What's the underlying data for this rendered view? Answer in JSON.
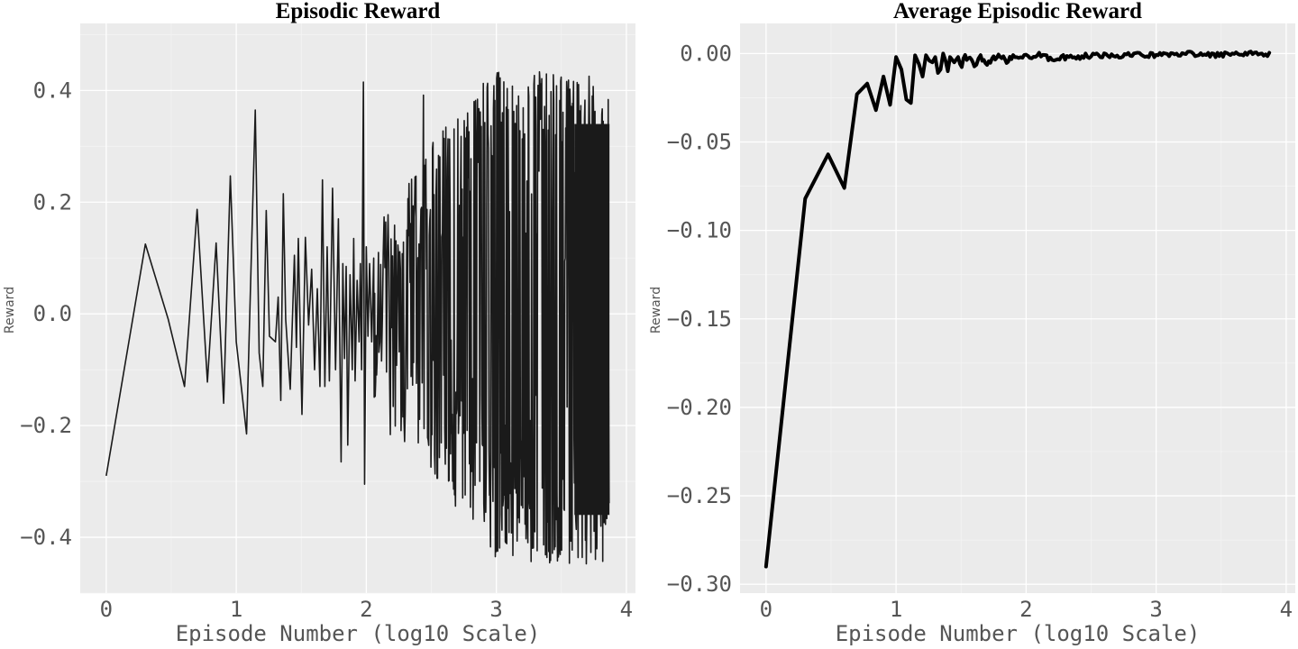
{
  "chart_data": [
    {
      "type": "line",
      "title": "Episodic Reward",
      "xlabel": "Episode Number (log10 Scale)",
      "ylabel": "Reward",
      "xlim": [
        -0.2,
        4.07
      ],
      "ylim": [
        -0.5,
        0.52
      ],
      "xticks": [
        0,
        1,
        2,
        3,
        4
      ],
      "xtick_labels": [
        "0",
        "1",
        "2",
        "3",
        "4"
      ],
      "yticks": [
        -0.4,
        -0.2,
        0.0,
        0.2,
        0.4
      ],
      "ytick_labels": [
        "−0.4",
        "−0.2",
        "0.0",
        "0.2",
        "0.4"
      ],
      "grid": true,
      "legend": "none",
      "series": [
        {
          "color": "#1a1a1a",
          "x_max": 3.87,
          "envelope": {
            "log10_episode": [
              2.0,
              2.5,
              3.0,
              3.5,
              3.87
            ],
            "reward_high": [
              0.41,
              0.45,
              0.44,
              0.43,
              0.43
            ],
            "reward_low": [
              -0.42,
              -0.43,
              -0.44,
              -0.45,
              -0.45
            ]
          },
          "points": [
            {
              "episode": 1,
              "reward": -0.29
            },
            {
              "episode": 2,
              "reward": 0.125
            },
            {
              "episode": 3,
              "reward": -0.01
            },
            {
              "episode": 4,
              "reward": -0.13
            },
            {
              "episode": 5,
              "reward": 0.187
            },
            {
              "episode": 6,
              "reward": -0.122
            },
            {
              "episode": 7,
              "reward": 0.127
            },
            {
              "episode": 8,
              "reward": -0.16
            },
            {
              "episode": 9,
              "reward": 0.247
            },
            {
              "episode": 10,
              "reward": -0.05
            },
            {
              "episode": 12,
              "reward": -0.215
            },
            {
              "episode": 14,
              "reward": 0.365
            },
            {
              "episode": 15,
              "reward": -0.07
            },
            {
              "episode": 16,
              "reward": -0.13
            },
            {
              "episode": 17,
              "reward": 0.185
            },
            {
              "episode": 18,
              "reward": -0.04
            },
            {
              "episode": 20,
              "reward": -0.05
            },
            {
              "episode": 21,
              "reward": 0.03
            },
            {
              "episode": 22,
              "reward": -0.155
            },
            {
              "episode": 23,
              "reward": 0.215
            },
            {
              "episode": 24,
              "reward": -0.01
            },
            {
              "episode": 26,
              "reward": -0.135
            },
            {
              "episode": 28,
              "reward": 0.105
            },
            {
              "episode": 29,
              "reward": -0.06
            },
            {
              "episode": 30,
              "reward": 0.135
            },
            {
              "episode": 32,
              "reward": -0.18
            },
            {
              "episode": 34,
              "reward": 0.137
            },
            {
              "episode": 36,
              "reward": -0.02
            },
            {
              "episode": 38,
              "reward": 0.08
            },
            {
              "episode": 40,
              "reward": -0.1
            },
            {
              "episode": 42,
              "reward": 0.045
            },
            {
              "episode": 44,
              "reward": -0.13
            },
            {
              "episode": 46,
              "reward": 0.24
            },
            {
              "episode": 48,
              "reward": -0.13
            },
            {
              "episode": 50,
              "reward": 0.12
            },
            {
              "episode": 52,
              "reward": -0.12
            },
            {
              "episode": 55,
              "reward": 0.225
            },
            {
              "episode": 58,
              "reward": -0.1
            },
            {
              "episode": 61,
              "reward": 0.17
            },
            {
              "episode": 64,
              "reward": -0.265
            },
            {
              "episode": 66,
              "reward": 0.09
            },
            {
              "episode": 68,
              "reward": -0.08
            },
            {
              "episode": 70,
              "reward": 0.085
            },
            {
              "episode": 72,
              "reward": -0.235
            },
            {
              "episode": 75,
              "reward": 0.07
            },
            {
              "episode": 78,
              "reward": -0.1
            },
            {
              "episode": 80,
              "reward": 0.135
            },
            {
              "episode": 82,
              "reward": -0.12
            },
            {
              "episode": 85,
              "reward": 0.06
            },
            {
              "episode": 88,
              "reward": -0.05
            },
            {
              "episode": 90,
              "reward": 0.09
            },
            {
              "episode": 92,
              "reward": -0.1
            },
            {
              "episode": 95,
              "reward": 0.415
            },
            {
              "episode": 97,
              "reward": -0.305
            },
            {
              "episode": 100,
              "reward": 0.12
            },
            {
              "episode": 103,
              "reward": -0.04
            },
            {
              "episode": 106,
              "reward": 0.09
            },
            {
              "episode": 110,
              "reward": -0.05
            },
            {
              "episode": 114,
              "reward": 0.1
            }
          ]
        }
      ]
    },
    {
      "type": "line",
      "title": "Average Episodic Reward",
      "xlabel": "Episode Number (log10 Scale)",
      "ylabel": "Reward",
      "xlim": [
        -0.2,
        4.07
      ],
      "ylim": [
        -0.305,
        0.017
      ],
      "xticks": [
        0,
        1,
        2,
        3,
        4
      ],
      "xtick_labels": [
        "0",
        "1",
        "2",
        "3",
        "4"
      ],
      "yticks": [
        0.0,
        -0.05,
        -0.1,
        -0.15,
        -0.2,
        -0.25,
        -0.3
      ],
      "ytick_labels": [
        "0.00",
        "−0.05",
        "−0.10",
        "−0.15",
        "−0.20",
        "−0.25",
        "−0.30"
      ],
      "grid": true,
      "legend": "none",
      "series": [
        {
          "color": "#000000",
          "points": [
            {
              "x": 0.0,
              "y": -0.29
            },
            {
              "x": 0.301,
              "y": -0.082
            },
            {
              "x": 0.477,
              "y": -0.057
            },
            {
              "x": 0.602,
              "y": -0.076
            },
            {
              "x": 0.699,
              "y": -0.023
            },
            {
              "x": 0.778,
              "y": -0.017
            },
            {
              "x": 0.845,
              "y": -0.032
            },
            {
              "x": 0.903,
              "y": -0.013
            },
            {
              "x": 0.954,
              "y": -0.029
            },
            {
              "x": 1.0,
              "y": -0.002
            },
            {
              "x": 1.041,
              "y": -0.009
            },
            {
              "x": 1.079,
              "y": -0.026
            },
            {
              "x": 1.114,
              "y": -0.028
            },
            {
              "x": 1.146,
              "y": -0.001
            },
            {
              "x": 1.176,
              "y": -0.006
            },
            {
              "x": 1.204,
              "y": -0.013
            },
            {
              "x": 1.23,
              "y": -0.001
            },
            {
              "x": 1.255,
              "y": -0.004
            },
            {
              "x": 1.279,
              "y": -0.005
            },
            {
              "x": 1.301,
              "y": -0.002
            },
            {
              "x": 1.322,
              "y": -0.011
            },
            {
              "x": 1.342,
              "y": -0.009
            },
            {
              "x": 1.362,
              "y": 0.0
            },
            {
              "x": 1.38,
              "y": -0.004
            },
            {
              "x": 1.398,
              "y": -0.01
            },
            {
              "x": 1.415,
              "y": -0.002
            },
            {
              "x": 1.447,
              "y": -0.005
            },
            {
              "x": 1.477,
              "y": -0.002
            },
            {
              "x": 1.505,
              "y": -0.007
            },
            {
              "x": 1.531,
              "y": -0.001
            },
            {
              "x": 1.556,
              "y": -0.004
            },
            {
              "x": 1.58,
              "y": -0.002
            },
            {
              "x": 1.602,
              "y": -0.008
            },
            {
              "x": 1.65,
              "y": -0.002
            },
            {
              "x": 1.7,
              "y": -0.005
            },
            {
              "x": 1.75,
              "y": -0.003
            },
            {
              "x": 1.8,
              "y": -0.001
            },
            {
              "x": 1.85,
              "y": -0.004
            },
            {
              "x": 1.9,
              "y": -0.001
            },
            {
              "x": 2.0,
              "y": -0.002
            },
            {
              "x": 2.1,
              "y": -0.001
            },
            {
              "x": 2.2,
              "y": -0.003
            },
            {
              "x": 2.3,
              "y": -0.002
            },
            {
              "x": 2.4,
              "y": -0.002
            },
            {
              "x": 2.5,
              "y": -0.001
            },
            {
              "x": 2.6,
              "y": -0.001
            },
            {
              "x": 2.8,
              "y": -0.001
            },
            {
              "x": 3.0,
              "y": -0.001
            },
            {
              "x": 3.2,
              "y": 0.0
            },
            {
              "x": 3.4,
              "y": -0.001
            },
            {
              "x": 3.6,
              "y": 0.0
            },
            {
              "x": 3.87,
              "y": 0.0
            }
          ]
        }
      ]
    }
  ]
}
